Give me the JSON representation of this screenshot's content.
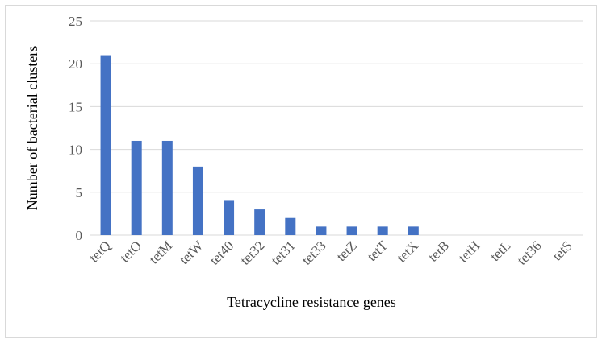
{
  "chart_data": {
    "type": "bar",
    "title": "",
    "xlabel": "Tetracycline resistance genes",
    "ylabel": "Number of bacterial clusters",
    "categories": [
      "tetQ",
      "tetO",
      "tetM",
      "tetW",
      "tet40",
      "tet32",
      "tet31",
      "tet33",
      "tetZ",
      "tetT",
      "tetX",
      "tetB",
      "tetH",
      "tetL",
      "tet36",
      "tetS"
    ],
    "values": [
      21,
      11,
      11,
      8,
      4,
      3,
      2,
      1,
      1,
      1,
      1,
      0,
      0,
      0,
      0,
      0
    ],
    "ylim": [
      0,
      25
    ],
    "yticks": [
      0,
      5,
      10,
      15,
      20,
      25
    ],
    "grid": true,
    "legend": "none",
    "bar_color": "#4472c4",
    "grid_color": "#d9d9d9"
  }
}
